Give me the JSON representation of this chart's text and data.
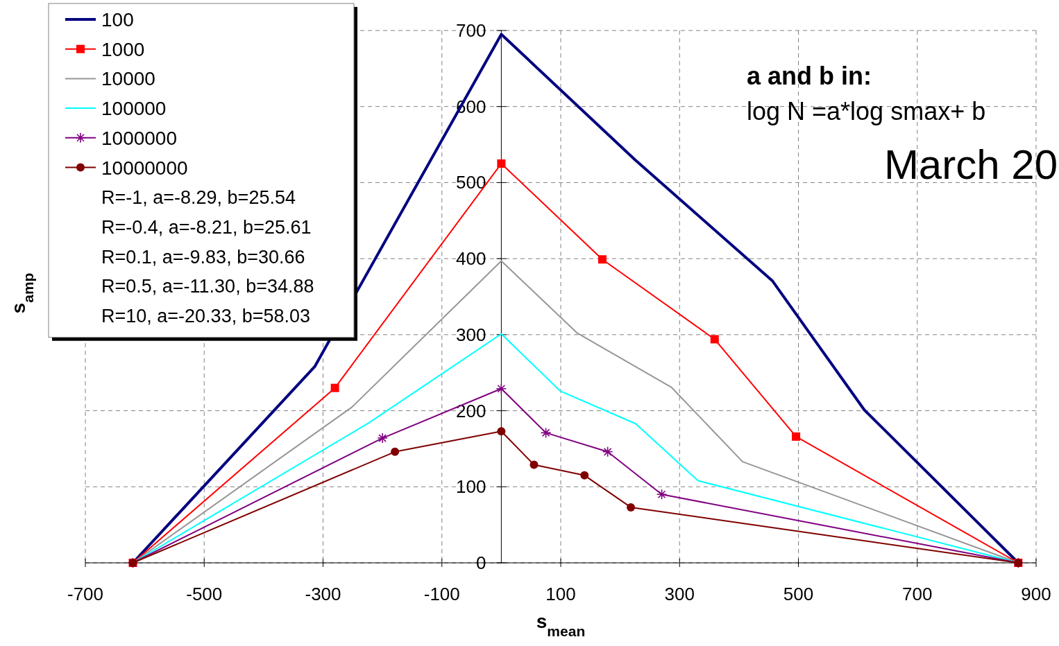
{
  "chart_data": {
    "type": "line",
    "xlabel": "s$_{mean}$",
    "ylabel": "s$_{amp}$",
    "xlim": [
      -700,
      900
    ],
    "xticks": [
      -700,
      -500,
      -300,
      -100,
      100,
      300,
      500,
      700,
      900
    ],
    "ylim": [
      0,
      700
    ],
    "yticks": [
      0,
      100,
      200,
      300,
      400,
      500,
      600,
      700
    ],
    "grid": true,
    "legend": "top left",
    "line_style": "solid",
    "series": [
      {
        "name": "100",
        "color": "#000080",
        "marker": "none",
        "x": [
          -620,
          -314,
          0,
          225,
          456,
          611,
          870
        ],
        "values": [
          0,
          258,
          695,
          530,
          371,
          201,
          0
        ]
      },
      {
        "name": "1000",
        "color": "#ff0000",
        "marker": "square",
        "x": [
          -620,
          -280,
          0,
          170,
          359,
          496,
          870
        ],
        "values": [
          0,
          230,
          525,
          399,
          294,
          166,
          0
        ]
      },
      {
        "name": "10000",
        "color": "#969696",
        "marker": "none",
        "x": [
          -620,
          -251,
          0,
          128,
          286,
          406,
          870
        ],
        "values": [
          0,
          205,
          397,
          302,
          231,
          133,
          0
        ]
      },
      {
        "name": "100000",
        "color": "#00ffff",
        "marker": "none",
        "x": [
          -620,
          -223,
          0,
          99,
          226,
          331,
          870
        ],
        "values": [
          0,
          184,
          301,
          226,
          183,
          108,
          0
        ]
      },
      {
        "name": "1000000",
        "color": "#800080",
        "marker": "cross",
        "x": [
          -620,
          -200,
          0,
          75,
          179,
          270,
          870
        ],
        "values": [
          0,
          164,
          229,
          171,
          146,
          90,
          0
        ]
      },
      {
        "name": "10000000",
        "color": "#800000",
        "marker": "circle",
        "x": [
          -620,
          -179,
          0,
          55,
          140,
          218,
          870
        ],
        "values": [
          0,
          146,
          173,
          129,
          115,
          73,
          0
        ]
      }
    ],
    "annotations": [
      "R=-1, a=-8.29, b=25.54",
      "R=-0.4, a=-8.21, b=25.61",
      "R=0.1, a=-9.83, b=30.66",
      "R=0.5, a=-11.30, b=34.88",
      "R=10, a=-20.33, b=58.03",
      "a and b in:",
      "log N =a*log smax+ b",
      "March 20"
    ]
  }
}
